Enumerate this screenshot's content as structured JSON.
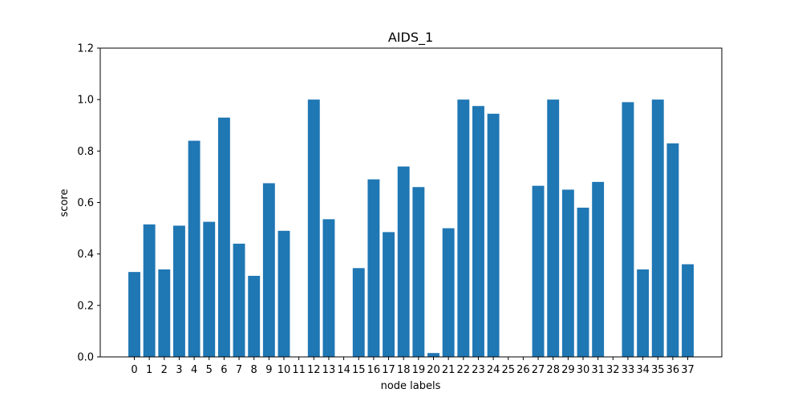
{
  "chart_data": {
    "type": "bar",
    "title": "AIDS_1",
    "xlabel": "node labels",
    "ylabel": "score",
    "ylim": [
      0,
      1.2
    ],
    "yticks": [
      "0.0",
      "0.2",
      "0.4",
      "0.6",
      "0.8",
      "1.0",
      "1.2"
    ],
    "categories": [
      "0",
      "1",
      "2",
      "3",
      "4",
      "5",
      "6",
      "7",
      "8",
      "9",
      "10",
      "11",
      "12",
      "13",
      "14",
      "15",
      "16",
      "17",
      "18",
      "19",
      "20",
      "21",
      "22",
      "23",
      "24",
      "25",
      "26",
      "27",
      "28",
      "29",
      "30",
      "31",
      "32",
      "33",
      "34",
      "35",
      "36",
      "37"
    ],
    "values": [
      0.33,
      0.515,
      0.34,
      0.51,
      0.84,
      0.525,
      0.93,
      0.44,
      0.315,
      0.675,
      0.49,
      0,
      1.0,
      0.535,
      0,
      0.345,
      0.69,
      0.485,
      0.74,
      0.66,
      0.015,
      0.5,
      1.0,
      0.975,
      0.945,
      0,
      0,
      0.665,
      1.0,
      0.65,
      0.58,
      0.68,
      0,
      0.99,
      0.34,
      1.0,
      0.83,
      0.36
    ],
    "bar_color": "#1f77b4",
    "grid": false,
    "legend": "none"
  }
}
